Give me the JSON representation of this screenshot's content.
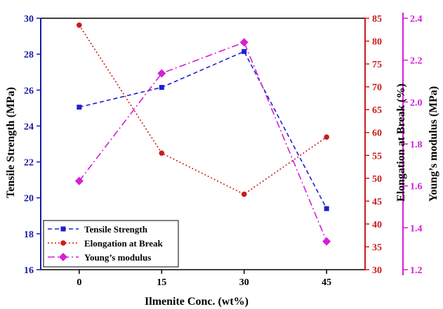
{
  "chart_data": {
    "type": "line",
    "x": [
      0,
      15,
      30,
      45
    ],
    "xlabel": "Ilmenite Conc. (wt%)",
    "xticks": [
      "0",
      "15",
      "30",
      "45"
    ],
    "xlim": [
      -7,
      52
    ],
    "series": [
      {
        "name": "Tensile Strength",
        "axis": "left",
        "values": [
          25.05,
          26.15,
          28.15,
          19.4
        ],
        "color": "#1f1fd1",
        "line_style": "dashed",
        "marker": "square"
      },
      {
        "name": "Elongation at Break",
        "axis": "right",
        "values": [
          83.5,
          55.5,
          46.5,
          59
        ],
        "color": "#cc1b1b",
        "line_style": "dotted",
        "marker": "circle"
      },
      {
        "name": "Young’s modulus",
        "axis": "right2",
        "values": [
          1.623,
          2.137,
          2.285,
          1.335
        ],
        "color": "#d61ed6",
        "line_style": "dash-dot",
        "marker": "diamond"
      }
    ],
    "axes": {
      "left": {
        "label": "Tensile Strength (MPa)",
        "ylim": [
          16,
          30
        ],
        "ticks": [
          "16",
          "18",
          "20",
          "22",
          "24",
          "26",
          "28",
          "30"
        ],
        "color": "#1a1aa6"
      },
      "right": {
        "label": "Elongation at Break (%)",
        "ylim": [
          30,
          85
        ],
        "ticks": [
          "30",
          "35",
          "40",
          "45",
          "50",
          "55",
          "60",
          "65",
          "70",
          "75",
          "80",
          "85"
        ],
        "color": "#cc1b1b"
      },
      "right2": {
        "label": "Young’s modulus (MPa)",
        "ylim": [
          1.2,
          2.4
        ],
        "ticks": [
          "1.2",
          "1.4",
          "1.6",
          "1.8",
          "2.0",
          "2.2",
          "2.4"
        ],
        "color": "#d61ed6"
      }
    },
    "legend": {
      "position": "bottom-left",
      "entries": [
        "Tensile Strength",
        "Elongation at Break",
        "Young’s modulus"
      ]
    },
    "grid": false
  }
}
